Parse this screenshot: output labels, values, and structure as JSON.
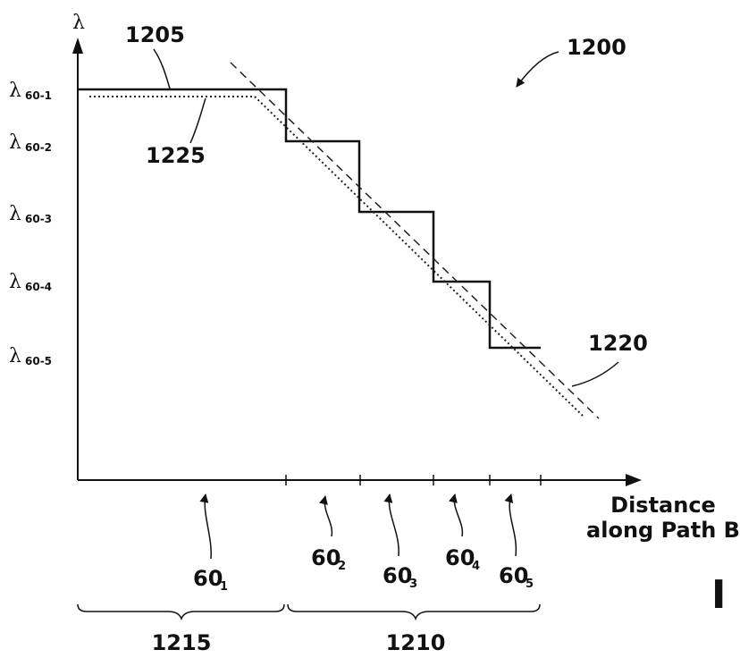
{
  "figure_number": "1200",
  "y_axis": {
    "symbol": "λ",
    "levels": [
      {
        "base": "λ",
        "sub": "60-1"
      },
      {
        "base": "λ",
        "sub": "60-2"
      },
      {
        "base": "λ",
        "sub": "60-3"
      },
      {
        "base": "λ",
        "sub": "60-4"
      },
      {
        "base": "λ",
        "sub": "60-5"
      }
    ]
  },
  "x_axis": {
    "label_line1": "Distance",
    "label_line2": "along Path B"
  },
  "curve_labels": {
    "stepped": "1205",
    "dotted": "1225",
    "dashed": "1220"
  },
  "segments": [
    {
      "base": "60",
      "sub": "1"
    },
    {
      "base": "60",
      "sub": "2"
    },
    {
      "base": "60",
      "sub": "3"
    },
    {
      "base": "60",
      "sub": "4"
    },
    {
      "base": "60",
      "sub": "5"
    }
  ],
  "regions": {
    "left": "1215",
    "right": "1210"
  },
  "corner_mark": "I"
}
